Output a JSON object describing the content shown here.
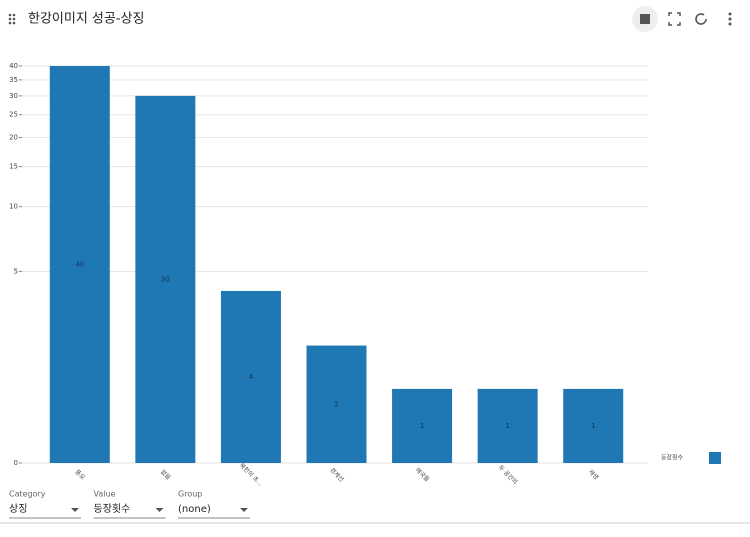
{
  "header": {
    "title": "한강이미지 성공-상징"
  },
  "chart_data": {
    "type": "bar",
    "categories": [
      "풍요",
      "없음",
      "북한의 초…",
      "경계선",
      "애국들",
      "두 공간의",
      "재생"
    ],
    "series": [
      {
        "name": "등장횟수",
        "color": "#1f77b4",
        "values": [
          40,
          30,
          4,
          2,
          1,
          1,
          1
        ]
      }
    ],
    "ylim": [
      0,
      40
    ],
    "yticks": [
      0,
      5,
      10,
      15,
      20,
      25,
      30,
      35,
      40
    ],
    "y_scale": "log1p",
    "grid": true,
    "legend": "bottom-right"
  },
  "controls": [
    {
      "label": "Category",
      "value": "상징"
    },
    {
      "label": "Value",
      "value": "등장횟수"
    },
    {
      "label": "Group",
      "value": "(none)"
    }
  ]
}
